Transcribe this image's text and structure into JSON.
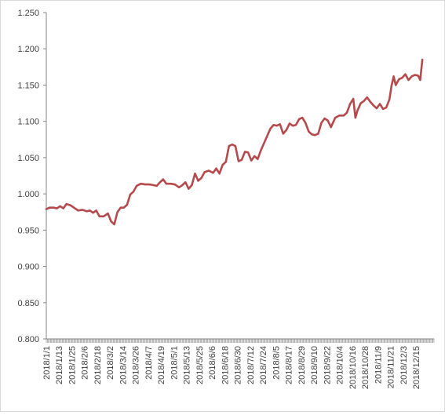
{
  "chart_data": {
    "type": "line",
    "title": "",
    "xlabel": "",
    "ylabel": "",
    "ylim": [
      0.8,
      1.25
    ],
    "yticks": [
      "0.800",
      "0.850",
      "0.900",
      "0.950",
      "1.000",
      "1.050",
      "1.100",
      "1.150",
      "1.200",
      "1.250"
    ],
    "grid": false,
    "legend": "none",
    "line_color": "#b5494c",
    "x_tick_labels": [
      "2018/1/1",
      "2018/1/13",
      "2018/1/25",
      "2018/2/6",
      "2018/2/18",
      "2018/3/2",
      "2018/3/14",
      "2018/3/26",
      "2018/4/7",
      "2018/4/19",
      "2018/5/1",
      "2018/5/13",
      "2018/5/25",
      "2018/6/6",
      "2018/6/18",
      "2018/6/30",
      "2018/7/12",
      "2018/7/24",
      "2018/8/5",
      "2018/8/17",
      "2018/8/29",
      "2018/9/10",
      "2018/9/22",
      "2018/10/4",
      "2018/10/16",
      "2018/10/28",
      "2018/11/9",
      "2018/11/21",
      "2018/12/3",
      "2018/12/15"
    ],
    "series": [
      {
        "name": "",
        "points": [
          [
            "2018-01-01",
            0.979
          ],
          [
            "2018-01-04",
            0.981
          ],
          [
            "2018-01-08",
            0.981
          ],
          [
            "2018-01-11",
            0.98
          ],
          [
            "2018-01-14",
            0.983
          ],
          [
            "2018-01-17",
            0.98
          ],
          [
            "2018-01-20",
            0.986
          ],
          [
            "2018-01-24",
            0.984
          ],
          [
            "2018-01-27",
            0.981
          ],
          [
            "2018-01-31",
            0.977
          ],
          [
            "2018-02-04",
            0.978
          ],
          [
            "2018-02-08",
            0.976
          ],
          [
            "2018-02-11",
            0.977
          ],
          [
            "2018-02-14",
            0.974
          ],
          [
            "2018-02-17",
            0.977
          ],
          [
            "2018-02-20",
            0.969
          ],
          [
            "2018-02-24",
            0.969
          ],
          [
            "2018-02-28",
            0.973
          ],
          [
            "2018-03-03",
            0.962
          ],
          [
            "2018-03-06",
            0.958
          ],
          [
            "2018-03-09",
            0.975
          ],
          [
            "2018-03-12",
            0.981
          ],
          [
            "2018-03-15",
            0.981
          ],
          [
            "2018-03-18",
            0.985
          ],
          [
            "2018-03-21",
            0.999
          ],
          [
            "2018-03-24",
            1.003
          ],
          [
            "2018-03-27",
            1.011
          ],
          [
            "2018-03-31",
            1.014
          ],
          [
            "2018-04-04",
            1.013
          ],
          [
            "2018-04-08",
            1.013
          ],
          [
            "2018-04-12",
            1.012
          ],
          [
            "2018-04-15",
            1.011
          ],
          [
            "2018-04-18",
            1.016
          ],
          [
            "2018-04-21",
            1.02
          ],
          [
            "2018-04-24",
            1.014
          ],
          [
            "2018-04-28",
            1.014
          ],
          [
            "2018-05-02",
            1.013
          ],
          [
            "2018-05-06",
            1.009
          ],
          [
            "2018-05-09",
            1.012
          ],
          [
            "2018-05-12",
            1.016
          ],
          [
            "2018-05-15",
            1.007
          ],
          [
            "2018-05-18",
            1.012
          ],
          [
            "2018-05-21",
            1.028
          ],
          [
            "2018-05-24",
            1.018
          ],
          [
            "2018-05-27",
            1.022
          ],
          [
            "2018-05-30",
            1.03
          ],
          [
            "2018-06-03",
            1.032
          ],
          [
            "2018-06-07",
            1.029
          ],
          [
            "2018-06-10",
            1.035
          ],
          [
            "2018-06-13",
            1.028
          ],
          [
            "2018-06-16",
            1.04
          ],
          [
            "2018-06-19",
            1.044
          ],
          [
            "2018-06-22",
            1.066
          ],
          [
            "2018-06-25",
            1.068
          ],
          [
            "2018-06-28",
            1.066
          ],
          [
            "2018-07-01",
            1.045
          ],
          [
            "2018-07-04",
            1.047
          ],
          [
            "2018-07-07",
            1.058
          ],
          [
            "2018-07-10",
            1.057
          ],
          [
            "2018-07-13",
            1.046
          ],
          [
            "2018-07-16",
            1.052
          ],
          [
            "2018-07-19",
            1.048
          ],
          [
            "2018-07-22",
            1.06
          ],
          [
            "2018-07-25",
            1.07
          ],
          [
            "2018-07-28",
            1.08
          ],
          [
            "2018-07-31",
            1.09
          ],
          [
            "2018-08-03",
            1.095
          ],
          [
            "2018-08-06",
            1.094
          ],
          [
            "2018-08-09",
            1.096
          ],
          [
            "2018-08-12",
            1.083
          ],
          [
            "2018-08-15",
            1.088
          ],
          [
            "2018-08-18",
            1.097
          ],
          [
            "2018-08-21",
            1.094
          ],
          [
            "2018-08-24",
            1.095
          ],
          [
            "2018-08-27",
            1.103
          ],
          [
            "2018-08-30",
            1.105
          ],
          [
            "2018-09-02",
            1.098
          ],
          [
            "2018-09-05",
            1.086
          ],
          [
            "2018-09-08",
            1.082
          ],
          [
            "2018-09-11",
            1.081
          ],
          [
            "2018-09-14",
            1.083
          ],
          [
            "2018-09-17",
            1.098
          ],
          [
            "2018-09-20",
            1.104
          ],
          [
            "2018-09-23",
            1.101
          ],
          [
            "2018-09-26",
            1.092
          ],
          [
            "2018-09-30",
            1.105
          ],
          [
            "2018-10-04",
            1.108
          ],
          [
            "2018-10-08",
            1.108
          ],
          [
            "2018-10-11",
            1.112
          ],
          [
            "2018-10-14",
            1.124
          ],
          [
            "2018-10-17",
            1.131
          ],
          [
            "2018-10-19",
            1.105
          ],
          [
            "2018-10-21",
            1.115
          ],
          [
            "2018-10-24",
            1.125
          ],
          [
            "2018-10-27",
            1.128
          ],
          [
            "2018-10-30",
            1.133
          ],
          [
            "2018-11-02",
            1.127
          ],
          [
            "2018-11-05",
            1.122
          ],
          [
            "2018-11-08",
            1.118
          ],
          [
            "2018-11-11",
            1.124
          ],
          [
            "2018-11-14",
            1.117
          ],
          [
            "2018-11-17",
            1.119
          ],
          [
            "2018-11-20",
            1.13
          ],
          [
            "2018-11-22",
            1.149
          ],
          [
            "2018-11-24",
            1.162
          ],
          [
            "2018-11-26",
            1.15
          ],
          [
            "2018-11-29",
            1.158
          ],
          [
            "2018-12-02",
            1.16
          ],
          [
            "2018-12-05",
            1.165
          ],
          [
            "2018-12-08",
            1.157
          ],
          [
            "2018-12-11",
            1.162
          ],
          [
            "2018-12-14",
            1.164
          ],
          [
            "2018-12-17",
            1.163
          ],
          [
            "2018-12-19",
            1.157
          ],
          [
            "2018-12-21",
            1.185
          ]
        ]
      }
    ]
  }
}
